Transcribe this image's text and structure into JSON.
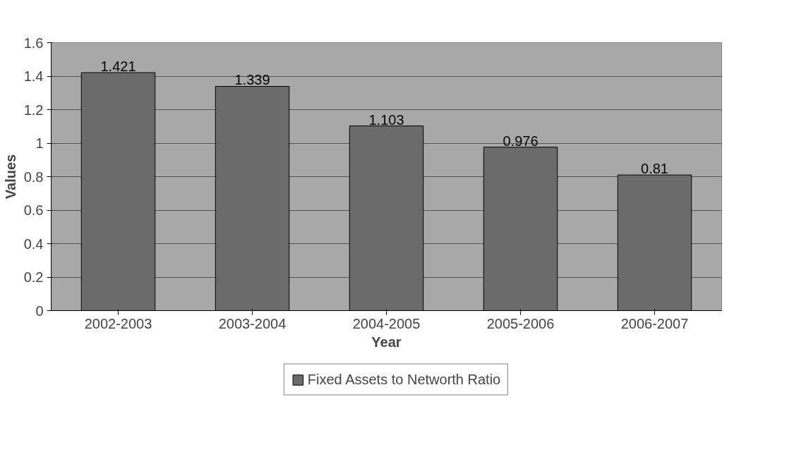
{
  "chart_data": {
    "type": "bar",
    "xlabel": "Year",
    "ylabel": "Values",
    "categories": [
      "2002-2003",
      "2003-2004",
      "2004-2005",
      "2005-2006",
      "2006-2007"
    ],
    "series": [
      {
        "name": "Fixed Assets to Networth Ratio",
        "color": "#6b6b6b",
        "values": [
          1.421,
          1.339,
          1.103,
          0.976,
          0.81
        ]
      }
    ],
    "ylim": [
      0,
      1.6
    ],
    "yticks": [
      0,
      0.2,
      0.4,
      0.6,
      0.8,
      1,
      1.2,
      1.4,
      1.6
    ],
    "grid": "y",
    "legend": "bottom",
    "data_labels": true
  }
}
